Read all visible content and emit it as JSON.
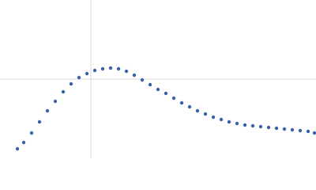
{
  "chart_data": {
    "type": "scatter",
    "color": "#3a62a8",
    "grid": true,
    "xlim": [
      0,
      0.4
    ],
    "ylim": [
      0,
      2
    ],
    "xticks": [
      0.115
    ],
    "yticks": [
      1
    ],
    "x": [
      0.022,
      0.03,
      0.04,
      0.05,
      0.06,
      0.07,
      0.08,
      0.09,
      0.1,
      0.11,
      0.12,
      0.13,
      0.14,
      0.15,
      0.16,
      0.17,
      0.18,
      0.19,
      0.2,
      0.21,
      0.22,
      0.23,
      0.24,
      0.25,
      0.26,
      0.27,
      0.28,
      0.29,
      0.3,
      0.31,
      0.32,
      0.33,
      0.34,
      0.35,
      0.36,
      0.37,
      0.38,
      0.39,
      0.398
    ],
    "values": [
      0.12,
      0.2,
      0.32,
      0.46,
      0.6,
      0.72,
      0.84,
      0.94,
      1.02,
      1.07,
      1.11,
      1.13,
      1.14,
      1.13,
      1.1,
      1.05,
      0.99,
      0.93,
      0.87,
      0.82,
      0.76,
      0.7,
      0.65,
      0.6,
      0.56,
      0.52,
      0.49,
      0.46,
      0.44,
      0.42,
      0.41,
      0.4,
      0.39,
      0.38,
      0.37,
      0.36,
      0.35,
      0.34,
      0.32
    ]
  }
}
